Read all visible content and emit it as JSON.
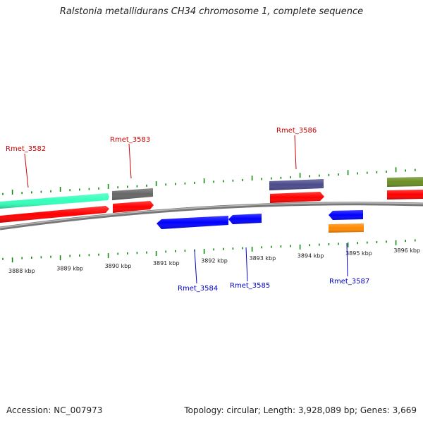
{
  "title": "Ralstonia metallidurans CH34 chromosome 1, complete sequence",
  "footer": {
    "accession": "Accession: NC_007973",
    "topology": "Topology: circular; Length: 3,928,089 bp; Genes: 3,669"
  },
  "scale_labels": [
    "3888 kbp",
    "3889 kbp",
    "3890 kbp",
    "3891 kbp",
    "3892 kbp",
    "3893 kbp",
    "3894 kbp",
    "3895 kbp",
    "3896 kbp"
  ],
  "gene_labels": {
    "forward": [
      "Rmet_3582",
      "Rmet_3583",
      "Rmet_3586"
    ],
    "reverse": [
      "Rmet_3584",
      "Rmet_3585",
      "Rmet_3587"
    ]
  },
  "colors": {
    "forward_label": "#cc0000",
    "reverse_label": "#0000cc",
    "tick": "#118811",
    "backbone": "#888888",
    "cds": "#ff0000",
    "reverse_gene": "#0000ff",
    "gene_teal": "#33ffbb",
    "gene_gray": "#666666",
    "gene_slate": "#4a4a8c",
    "gene_olive": "#6b8e23",
    "gene_orange": "#ff8800"
  }
}
